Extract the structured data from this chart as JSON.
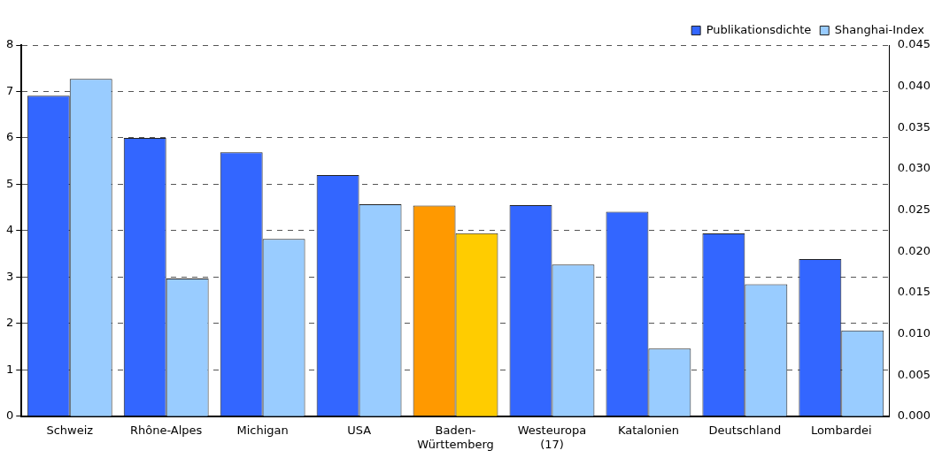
{
  "chart_data": {
    "type": "bar",
    "categories": [
      "Schweiz",
      "Rhône-Alpes",
      "Michigan",
      "USA",
      "Baden-\nWürttemberg",
      "Westeuropa\n(17)",
      "Katalonien",
      "Deutschland",
      "Lombardei"
    ],
    "series": [
      {
        "name": "Publikationsdichte",
        "color": "#3366ff",
        "colors": [
          "#3366ff",
          "#3366ff",
          "#3366ff",
          "#3366ff",
          "#ff9900",
          "#3366ff",
          "#3366ff",
          "#3366ff",
          "#3366ff"
        ],
        "values": [
          6.91,
          6.0,
          5.69,
          5.2,
          4.54,
          4.55,
          4.41,
          3.94,
          3.39
        ]
      },
      {
        "name": "Shanghai-Index",
        "color": "#99ccff",
        "axis": "y2",
        "colors": [
          "#99ccff",
          "#99ccff",
          "#99ccff",
          "#99ccff",
          "#ffcc00",
          "#99ccff",
          "#99ccff",
          "#99ccff",
          "#99ccff"
        ],
        "values": [
          0.0409,
          0.0167,
          0.0215,
          0.0257,
          0.0222,
          0.0184,
          0.0082,
          0.016,
          0.0104
        ]
      }
    ],
    "ylim": [
      0,
      8
    ],
    "yticks": [
      0,
      1,
      2,
      3,
      4,
      5,
      6,
      7,
      8
    ],
    "y2lim": [
      0,
      0.045
    ],
    "y2ticks": [
      {
        "value": 0,
        "label": "0.000"
      },
      {
        "value": 0.005,
        "label": "0.005"
      },
      {
        "value": 0.01,
        "label": "0.010"
      },
      {
        "value": 0.015,
        "label": "0.015"
      },
      {
        "value": 0.02,
        "label": "0.020"
      },
      {
        "value": 0.025,
        "label": "0.025"
      },
      {
        "value": 0.03,
        "label": "0.030"
      },
      {
        "value": 0.035,
        "label": "0.035"
      },
      {
        "value": 0.04,
        "label": "0.040"
      },
      {
        "value": 0.045,
        "label": "0.045"
      }
    ],
    "grid": "y",
    "legend": "top right"
  }
}
